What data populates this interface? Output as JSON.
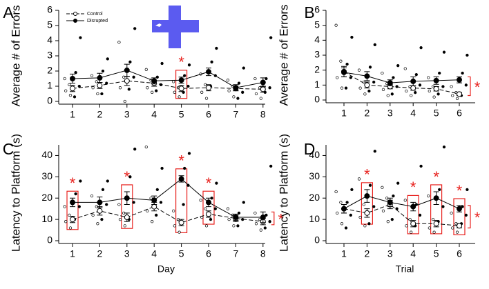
{
  "chart_data": [
    {
      "type": "line",
      "panel": "A",
      "ylabel": "Average # of Errors",
      "categories": [
        "1",
        "2",
        "3",
        "4",
        "5",
        "6",
        "7",
        "8"
      ],
      "ylim": [
        0,
        6
      ],
      "yticks": [
        0,
        1,
        2,
        3,
        4,
        5,
        6
      ],
      "legend": true,
      "series": [
        {
          "name": "Control",
          "color": "#000000",
          "marker": "open",
          "dash": true,
          "values": [
            0.85,
            1.05,
            1.35,
            1.2,
            0.85,
            0.9,
            0.85,
            0.8
          ],
          "errors": [
            0.2,
            0.2,
            0.3,
            0.2,
            0.2,
            0.2,
            0.15,
            0.2
          ],
          "points": [
            [
              0.4,
              0.7,
              1.1,
              1.5
            ],
            [
              0.5,
              0.9,
              1.3,
              1.7
            ],
            [
              0,
              0.9,
              1.6,
              3.9
            ],
            [
              0.6,
              0.9,
              1.4,
              2.1
            ],
            [
              0.3,
              0.6,
              0.9,
              1.3
            ],
            [
              0.2,
              0.6,
              1.1,
              1.8
            ],
            [
              0.3,
              0.7,
              1,
              1.4
            ],
            [
              0.2,
              0.5,
              0.9,
              1.5
            ]
          ]
        },
        {
          "name": "Disrupted",
          "color": "#000000",
          "marker": "filled",
          "dash": false,
          "values": [
            1.5,
            1.55,
            2.05,
            1.35,
            1.4,
            1.95,
            0.9,
            1.25
          ],
          "errors": [
            0.3,
            0.3,
            0.4,
            0.2,
            0.2,
            0.25,
            0.2,
            0.3
          ],
          "points": [
            [
              0.3,
              1,
              1.9,
              4.2
            ],
            [
              0.5,
              1.2,
              2,
              2.8
            ],
            [
              0.8,
              1.6,
              2.6,
              4.8
            ],
            [
              0.7,
              1.1,
              1.6,
              2.5
            ],
            [
              0.6,
              1,
              1.7,
              2.4
            ],
            [
              1,
              1.7,
              2.6,
              3.5
            ],
            [
              0.2,
              0.6,
              1.2,
              2.2
            ],
            [
              0.6,
              0.9,
              1.5,
              4.2
            ]
          ]
        }
      ],
      "annotations": [
        {
          "text": "*",
          "at": "5"
        }
      ]
    },
    {
      "type": "line",
      "panel": "B",
      "ylabel": "Average # of Errors",
      "categories": [
        "1",
        "2",
        "3",
        "4",
        "5",
        "6"
      ],
      "ylim": [
        0,
        6
      ],
      "yticks": [
        0,
        1,
        2,
        3,
        4,
        5,
        6
      ],
      "series": [
        {
          "name": "Control",
          "color": "#000000",
          "marker": "open",
          "dash": true,
          "values": [
            1.9,
            1.0,
            0.9,
            0.8,
            0.75,
            0.4
          ],
          "errors": [
            0.35,
            0.2,
            0.15,
            0.15,
            0.15,
            0.1
          ],
          "points": [
            [
              0.8,
              1.5,
              2.6,
              5
            ],
            [
              0.4,
              0.8,
              1.2,
              2
            ],
            [
              0.3,
              0.7,
              1.1,
              1.8
            ],
            [
              0.3,
              0.6,
              0.9,
              2.1
            ],
            [
              0.2,
              0.6,
              0.9,
              1.5
            ],
            [
              0.1,
              0.3,
              0.5,
              0.9
            ]
          ]
        },
        {
          "name": "Disrupted",
          "color": "#000000",
          "marker": "filled",
          "dash": false,
          "values": [
            1.85,
            1.6,
            1.15,
            1.25,
            1.3,
            1.35
          ],
          "errors": [
            0.3,
            0.3,
            0.2,
            0.3,
            0.25,
            0.2
          ],
          "points": [
            [
              0.8,
              1.5,
              2.4,
              4.2
            ],
            [
              0.6,
              1.2,
              2.2,
              3.7
            ],
            [
              0.4,
              0.9,
              1.5,
              2.3
            ],
            [
              0.5,
              1,
              1.7,
              3.5
            ],
            [
              0.4,
              0.9,
              1.8,
              3.2
            ],
            [
              0.3,
              1,
              1.8,
              3
            ]
          ]
        }
      ],
      "bracket": "*"
    },
    {
      "type": "line",
      "panel": "C",
      "ylabel": "Latency to Platform (s)",
      "xlabel": "Day",
      "categories": [
        "1",
        "2",
        "3",
        "4",
        "5",
        "6",
        "7",
        "8"
      ],
      "ylim": [
        0,
        45
      ],
      "yticks": [
        0,
        10,
        20,
        30,
        40
      ],
      "series": [
        {
          "name": "Control",
          "color": "#000000",
          "marker": "open",
          "dash": true,
          "values": [
            10,
            14,
            11,
            16,
            8.5,
            12.5,
            10.5,
            9
          ],
          "errors": [
            1.5,
            2,
            2,
            2,
            1.5,
            1.5,
            1.5,
            1.5
          ],
          "points": [
            [
              6,
              9,
              12,
              16
            ],
            [
              8,
              12,
              16,
              21
            ],
            [
              7,
              10,
              13,
              17
            ],
            [
              9,
              14,
              20,
              44
            ],
            [
              4,
              7,
              10,
              14
            ],
            [
              7,
              11,
              15,
              19
            ],
            [
              7,
              10,
              12,
              15
            ],
            [
              5,
              8,
              10,
              13
            ]
          ]
        },
        {
          "name": "Disrupted",
          "color": "#000000",
          "marker": "filled",
          "dash": false,
          "values": [
            18,
            18,
            20,
            19,
            29,
            18,
            11,
            11
          ],
          "errors": [
            2,
            2.5,
            3,
            2,
            1.5,
            2,
            1.5,
            2.5
          ],
          "points": [
            [
              10,
              16,
              22,
              28
            ],
            [
              10,
              17,
              24,
              28
            ],
            [
              10,
              18,
              30,
              43
            ],
            [
              12,
              18,
              24,
              34
            ],
            [
              17,
              26,
              34,
              41
            ],
            [
              10,
              15,
              20,
              27
            ],
            [
              7,
              10,
              13,
              18
            ],
            [
              6,
              9,
              12,
              35
            ]
          ]
        }
      ],
      "annotations": [
        {
          "text": "*",
          "at": "1"
        },
        {
          "text": "*",
          "at": "3"
        },
        {
          "text": "*",
          "at": "5"
        },
        {
          "text": "*",
          "at": "6"
        }
      ],
      "bracket": "*"
    },
    {
      "type": "line",
      "panel": "D",
      "ylabel": "Latency to Platform (s)",
      "xlabel": "Trial",
      "categories": [
        "1",
        "2",
        "3",
        "4",
        "5",
        "6"
      ],
      "ylim": [
        0,
        45
      ],
      "yticks": [
        0,
        10,
        20,
        30,
        40
      ],
      "series": [
        {
          "name": "Control",
          "color": "#000000",
          "marker": "open",
          "dash": true,
          "values": [
            15,
            13,
            17,
            8,
            8,
            7
          ],
          "errors": [
            2,
            2,
            2,
            1.5,
            1.5,
            1
          ],
          "points": [
            [
              8,
              13,
              18,
              23
            ],
            [
              7,
              11,
              17,
              29
            ],
            [
              9,
              14,
              20,
              25
            ],
            [
              4,
              7,
              10,
              19
            ],
            [
              4,
              6,
              10,
              21
            ],
            [
              4,
              6,
              8,
              13
            ]
          ]
        },
        {
          "name": "Disrupted",
          "color": "#000000",
          "marker": "filled",
          "dash": false,
          "values": [
            15,
            21,
            18,
            16,
            20,
            15
          ],
          "errors": [
            2,
            3,
            2,
            2,
            3,
            1.5
          ],
          "points": [
            [
              6,
              12,
              18,
              24
            ],
            [
              8,
              16,
              26,
              42
            ],
            [
              10,
              15,
              21,
              27
            ],
            [
              7,
              12,
              17,
              35
            ],
            [
              9,
              16,
              24,
              44
            ],
            [
              8,
              12,
              16,
              24
            ]
          ]
        }
      ],
      "annotations": [
        {
          "text": "*",
          "at": "2"
        },
        {
          "text": "*",
          "at": "4"
        },
        {
          "text": "*",
          "at": "5"
        },
        {
          "text": "*",
          "at": "6"
        }
      ],
      "bracket": "*"
    }
  ]
}
